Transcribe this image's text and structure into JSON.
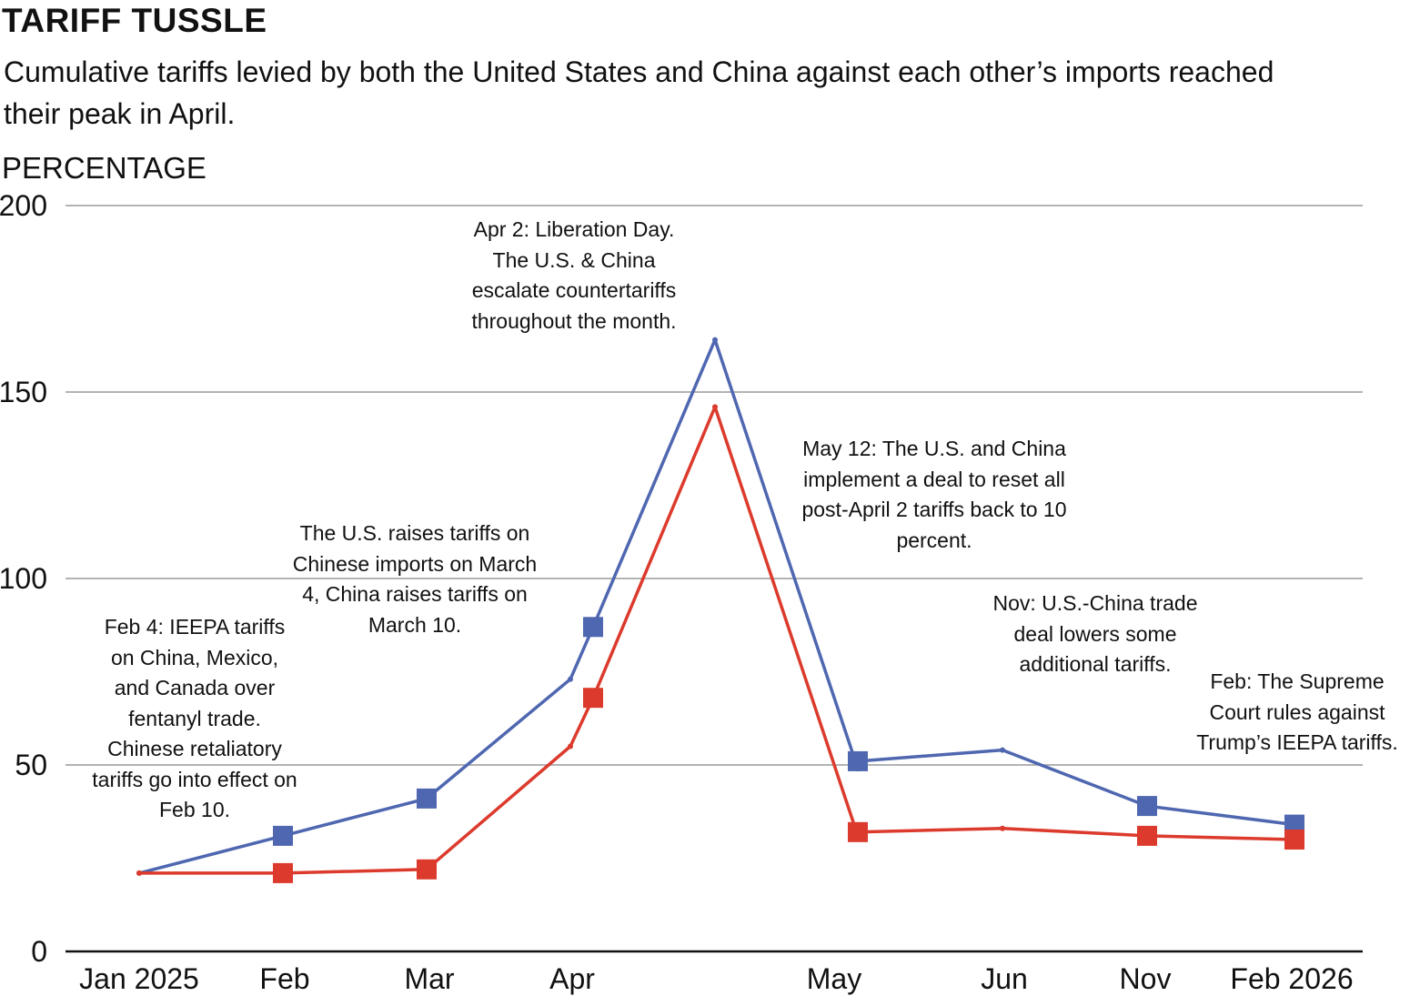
{
  "header": {
    "title": "TARIFF TUSSLE",
    "subtitle": "Cumulative tariffs levied by both the United States and China against each other’s imports reached their peak in April.",
    "units": "PERCENTAGE"
  },
  "colors": {
    "us_line": "#4F67B0",
    "china_line": "#DC3A2C",
    "grid": "#9a9a9a",
    "axis": "#111111"
  },
  "chart_data": {
    "type": "line",
    "ylim": [
      0,
      200
    ],
    "yticks": [
      "0",
      "50",
      "100",
      "150",
      "200"
    ],
    "x_tick_labels": [
      "Jan 2025",
      "Feb",
      "Mar",
      "Apr",
      "May",
      "Jun",
      "Nov",
      "Feb 2026"
    ],
    "grid": true,
    "series": [
      {
        "color": "#4F67B0",
        "points": [
          {
            "x": "Jan 2025",
            "y": 21,
            "marker": false
          },
          {
            "x": "Feb 4, 2025",
            "y": 31,
            "marker": true
          },
          {
            "x": "Mar 4, 2025",
            "y": 41,
            "marker": true
          },
          {
            "x": "Apr 2, 2025",
            "y": 73,
            "marker": false
          },
          {
            "x": "Apr 7, 2025",
            "y": 87,
            "marker": true
          },
          {
            "x": "Apr 30, 2025",
            "y": 164,
            "marker": false
          },
          {
            "x": "May 12, 2025",
            "y": 49,
            "marker": false
          },
          {
            "x": "May 12, 2025",
            "y": 51,
            "marker": true
          },
          {
            "x": "Jun 2025",
            "y": 54,
            "marker": false
          },
          {
            "x": "Nov 2025",
            "y": 39,
            "marker": true
          },
          {
            "x": "Feb 2026",
            "y": 34,
            "marker": true
          }
        ]
      },
      {
        "color": "#DC3A2C",
        "points": [
          {
            "x": "Jan 2025",
            "y": 21,
            "marker": false
          },
          {
            "x": "Feb 4, 2025",
            "y": 21,
            "marker": true
          },
          {
            "x": "Mar 4, 2025",
            "y": 22,
            "marker": true
          },
          {
            "x": "Apr 2, 2025",
            "y": 55,
            "marker": false
          },
          {
            "x": "Apr 7, 2025",
            "y": 68,
            "marker": true
          },
          {
            "x": "Apr 30, 2025",
            "y": 146,
            "marker": false
          },
          {
            "x": "May 12, 2025",
            "y": 31,
            "marker": false
          },
          {
            "x": "May 12, 2025",
            "y": 32,
            "marker": true
          },
          {
            "x": "Jun 2025",
            "y": 33,
            "marker": false
          },
          {
            "x": "Nov 2025",
            "y": 31,
            "marker": true
          },
          {
            "x": "Feb 2026",
            "y": 30,
            "marker": true
          }
        ]
      }
    ],
    "annotations": [
      "Feb 4: IEEPA tariffs on China, Mexico, and Canada over fentanyl trade. Chinese retaliatory tariffs go into effect on Feb 10.",
      "The U.S. raises tariffs on Chinese imports on March 4, China raises tariffs on March 10.",
      "Apr 2: Liberation Day. The U.S. & China escalate countertariffs throughout the month.",
      "May 12: The U.S. and China implement a deal to reset all post-April 2 tariffs back to 10 percent.",
      "Nov: U.S.-China trade deal lowers some additional tariffs.",
      "Feb: The Supreme Court rules against Trump’s IEEPA tariffs."
    ]
  }
}
